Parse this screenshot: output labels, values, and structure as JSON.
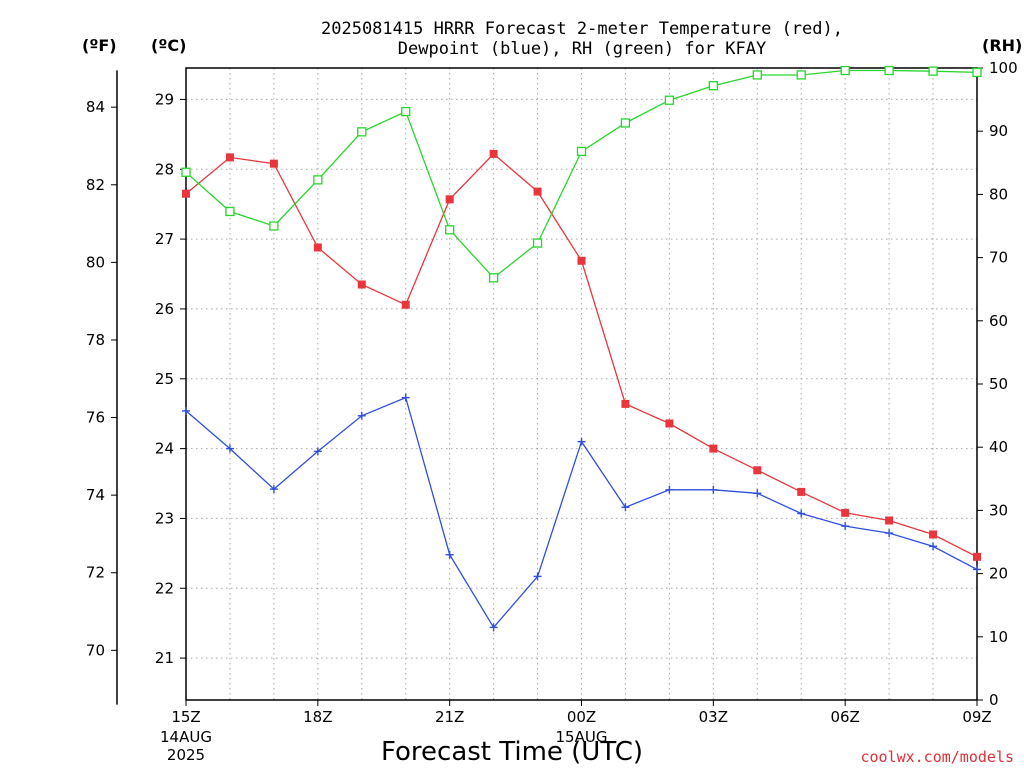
{
  "chart_data": {
    "type": "line",
    "title_lines": [
      "2025081415 HRRR Forecast 2-meter Temperature (red),",
      "Dewpoint (blue), RH (green) for KFAY"
    ],
    "xlabel": "Forecast Time (UTC)",
    "credit": "coolwx.com/models",
    "units": {
      "fahrenheit": "(ºF)",
      "celsius": "(ºC)",
      "rh": "(RH)"
    },
    "x_ticks": [
      {
        "label": "15Z",
        "sub": [
          "14AUG",
          "2025"
        ],
        "hour": 0
      },
      {
        "label": "18Z",
        "sub": [],
        "hour": 3
      },
      {
        "label": "21Z",
        "sub": [],
        "hour": 6
      },
      {
        "label": "00Z",
        "sub": [
          "15AUG"
        ],
        "hour": 9
      },
      {
        "label": "03Z",
        "sub": [],
        "hour": 12
      },
      {
        "label": "06Z",
        "sub": [],
        "hour": 15
      },
      {
        "label": "09Z",
        "sub": [],
        "hour": 18
      }
    ],
    "x_range": [
      0,
      18
    ],
    "y_celsius_range": [
      20.4,
      29.45
    ],
    "y_celsius_ticks": [
      21,
      22,
      23,
      24,
      25,
      26,
      27,
      28,
      29
    ],
    "y_fahrenheit_ticks": [
      70,
      72,
      74,
      76,
      78,
      80,
      82,
      84
    ],
    "y_rh_range": [
      0,
      100
    ],
    "y_rh_ticks": [
      0,
      10,
      20,
      30,
      40,
      50,
      60,
      70,
      80,
      90,
      100
    ],
    "grid": true,
    "series": [
      {
        "name": "Temperature",
        "axis": "celsius",
        "color": "#e8363c",
        "marker": "filled-square",
        "values": [
          27.65,
          28.17,
          28.08,
          26.88,
          26.35,
          26.06,
          27.57,
          28.22,
          27.68,
          26.69,
          24.64,
          24.36,
          24.0,
          23.69,
          23.38,
          23.08,
          22.97,
          22.77,
          22.45
        ]
      },
      {
        "name": "Dewpoint",
        "axis": "celsius",
        "color": "#2e4fe0",
        "marker": "plus",
        "values": [
          24.54,
          24.0,
          23.42,
          23.96,
          24.47,
          24.73,
          22.48,
          21.44,
          22.17,
          24.1,
          23.16,
          23.41,
          23.41,
          23.36,
          23.07,
          22.89,
          22.79,
          22.6,
          22.27
        ]
      },
      {
        "name": "RH",
        "axis": "rh",
        "color": "#27d62a",
        "marker": "open-square",
        "values": [
          83.5,
          77.3,
          75.0,
          82.3,
          89.9,
          93.1,
          74.4,
          66.8,
          72.3,
          86.8,
          91.3,
          94.9,
          97.2,
          98.9,
          98.9,
          99.6,
          99.6,
          99.5,
          99.3
        ]
      }
    ]
  }
}
